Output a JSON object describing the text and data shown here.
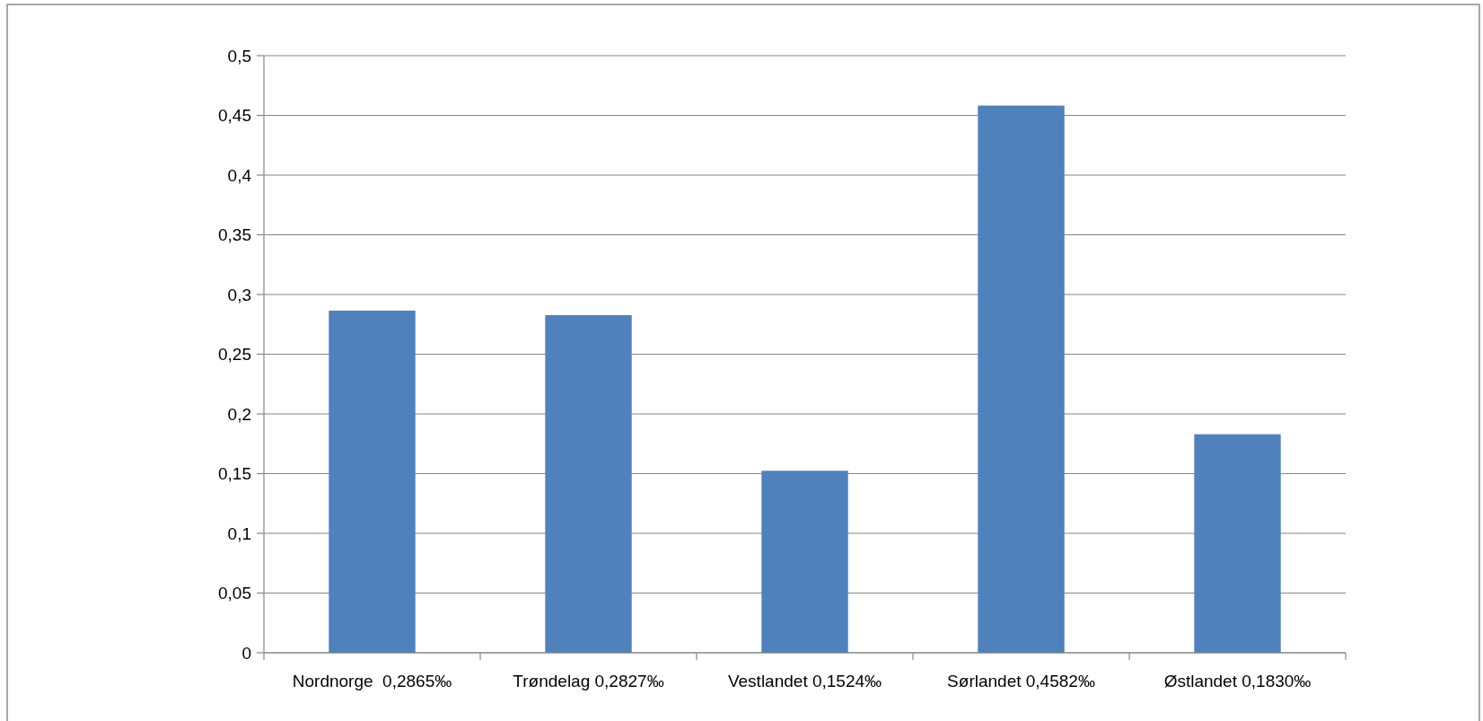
{
  "chart_data": {
    "type": "bar",
    "categories": [
      "Nordnorge  0,2865‰",
      "Trøndelag 0,2827‰",
      "Vestlandet 0,1524‰",
      "Sørlandet 0,4582‰",
      "Østlandet 0,1830‰"
    ],
    "values": [
      0.2865,
      0.2827,
      0.1524,
      0.4582,
      0.183
    ],
    "color": "#4f81bd",
    "ylim": [
      0,
      0.5
    ],
    "yticks": [
      {
        "value": 0,
        "label": "0"
      },
      {
        "value": 0.05,
        "label": "0,05"
      },
      {
        "value": 0.1,
        "label": "0,1"
      },
      {
        "value": 0.15,
        "label": "0,15"
      },
      {
        "value": 0.2,
        "label": "0,2"
      },
      {
        "value": 0.25,
        "label": "0,25"
      },
      {
        "value": 0.3,
        "label": "0,3"
      },
      {
        "value": 0.35,
        "label": "0,35"
      },
      {
        "value": 0.4,
        "label": "0,4"
      },
      {
        "value": 0.45,
        "label": "0,45"
      },
      {
        "value": 0.5,
        "label": "0,5"
      }
    ],
    "grid": "y"
  }
}
